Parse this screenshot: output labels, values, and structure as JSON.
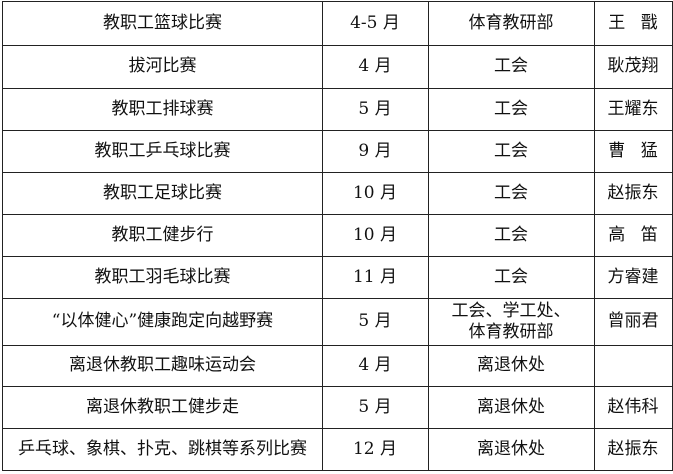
{
  "table": {
    "rows": [
      [
        "教职工篮球比赛",
        "4-5 月",
        "体育教研部",
        "王 戬"
      ],
      [
        "拔河比赛",
        "4 月",
        "工会",
        "耿茂翔"
      ],
      [
        "教职工排球赛",
        "5 月",
        "工会",
        "王耀东"
      ],
      [
        "教职工乒乓球比赛",
        "9 月",
        "工会",
        "曹 猛"
      ],
      [
        "教职工足球比赛",
        "10 月",
        "工会",
        "赵振东"
      ],
      [
        "教职工健步行",
        "10 月",
        "工会",
        "高 笛"
      ],
      [
        "教职工羽毛球比赛",
        "11 月",
        "工会",
        "方睿建"
      ],
      [
        "“以体健心”健康跑定向越野赛",
        "5 月",
        [
          "工会、学工处、",
          "体育教研部"
        ],
        "曾丽君"
      ],
      [
        "离退休教职工趣味运动会",
        "4 月",
        "离退休处",
        null
      ],
      [
        "离退休教职工健步走",
        "5 月",
        "离退休处",
        "赵伟科"
      ],
      [
        "乒乓球、象棋、扑克、跳棋等系列比赛",
        "12 月",
        "离退休处",
        "赵振东"
      ]
    ]
  }
}
